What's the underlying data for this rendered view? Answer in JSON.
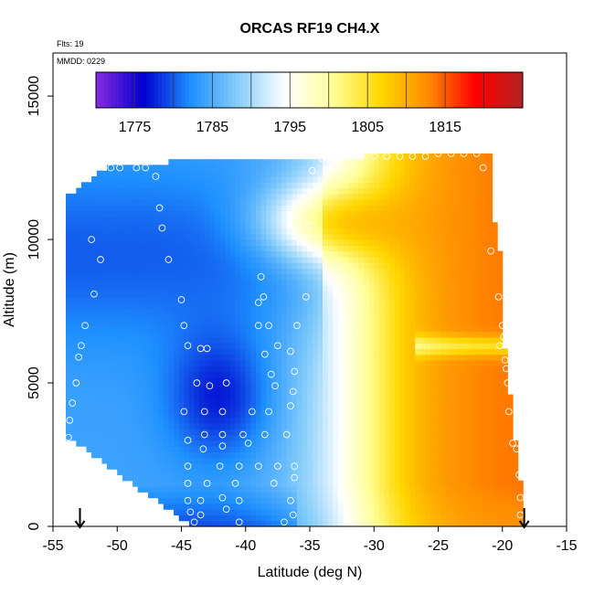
{
  "chart_data": {
    "type": "heatmap",
    "title": "ORCAS RF19 CH4.X",
    "annotations": {
      "flights": "Flts: 19",
      "mmdd": "MMDD: 0229"
    },
    "xlabel": "Latitude (deg N)",
    "ylabel": "Altitude (m)",
    "xlim": [
      -55,
      -15
    ],
    "ylim": [
      0,
      16500
    ],
    "x_ticks": [
      -55,
      -50,
      -45,
      -40,
      -35,
      -30,
      -25,
      -20,
      -15
    ],
    "y_ticks": [
      0,
      5000,
      10000,
      15000
    ],
    "colorbar": {
      "min": 1770,
      "max": 1825,
      "ticks": [
        1775,
        1785,
        1795,
        1805,
        1815
      ],
      "colors": [
        "#8a2be2",
        "#0000cd",
        "#1e90ff",
        "#87cefa",
        "#ffffff",
        "#ffff99",
        "#ffd700",
        "#ff8c00",
        "#ff0000",
        "#b22222"
      ]
    },
    "arrows": [
      {
        "lat": -52.9,
        "direction": "down"
      },
      {
        "lat": -18.3,
        "direction": "down"
      }
    ],
    "samples": [
      {
        "lat": -50.5,
        "alt": 12500
      },
      {
        "lat": -49.8,
        "alt": 12500
      },
      {
        "lat": -48.5,
        "alt": 12500
      },
      {
        "lat": -47.8,
        "alt": 12500
      },
      {
        "lat": -47.0,
        "alt": 12200
      },
      {
        "lat": -46.7,
        "alt": 11100
      },
      {
        "lat": -46.5,
        "alt": 10400
      },
      {
        "lat": -52.0,
        "alt": 10000
      },
      {
        "lat": -51.3,
        "alt": 9300
      },
      {
        "lat": -46.0,
        "alt": 9300
      },
      {
        "lat": -45.0,
        "alt": 7900
      },
      {
        "lat": -51.8,
        "alt": 8100
      },
      {
        "lat": -52.5,
        "alt": 7000
      },
      {
        "lat": -44.8,
        "alt": 7000
      },
      {
        "lat": -44.5,
        "alt": 6300
      },
      {
        "lat": -52.8,
        "alt": 6300
      },
      {
        "lat": -53.0,
        "alt": 5900
      },
      {
        "lat": -43.5,
        "alt": 6200
      },
      {
        "lat": -43.0,
        "alt": 6200
      },
      {
        "lat": -43.8,
        "alt": 5000
      },
      {
        "lat": -42.8,
        "alt": 4900
      },
      {
        "lat": -41.5,
        "alt": 5000
      },
      {
        "lat": -53.2,
        "alt": 5000
      },
      {
        "lat": -53.5,
        "alt": 4300
      },
      {
        "lat": -53.7,
        "alt": 3700
      },
      {
        "lat": -53.8,
        "alt": 3100
      },
      {
        "lat": -44.8,
        "alt": 4000
      },
      {
        "lat": -43.2,
        "alt": 4000
      },
      {
        "lat": -41.8,
        "alt": 4000
      },
      {
        "lat": -39.5,
        "alt": 4000
      },
      {
        "lat": -38.2,
        "alt": 4000
      },
      {
        "lat": -43.2,
        "alt": 3200
      },
      {
        "lat": -41.8,
        "alt": 3200
      },
      {
        "lat": -40.2,
        "alt": 3200
      },
      {
        "lat": -38.5,
        "alt": 3200
      },
      {
        "lat": -36.8,
        "alt": 3200
      },
      {
        "lat": -44.5,
        "alt": 3000
      },
      {
        "lat": -43.3,
        "alt": 2700
      },
      {
        "lat": -41.8,
        "alt": 2800
      },
      {
        "lat": -39.8,
        "alt": 2900
      },
      {
        "lat": -42.0,
        "alt": 2100
      },
      {
        "lat": -40.5,
        "alt": 2100
      },
      {
        "lat": -39.0,
        "alt": 2100
      },
      {
        "lat": -37.5,
        "alt": 2100
      },
      {
        "lat": -36.2,
        "alt": 2100
      },
      {
        "lat": -44.5,
        "alt": 2100
      },
      {
        "lat": -44.5,
        "alt": 1500
      },
      {
        "lat": -43.0,
        "alt": 1500
      },
      {
        "lat": -40.8,
        "alt": 1500
      },
      {
        "lat": -37.8,
        "alt": 1500
      },
      {
        "lat": -36.2,
        "alt": 1700
      },
      {
        "lat": -44.5,
        "alt": 900
      },
      {
        "lat": -43.5,
        "alt": 900
      },
      {
        "lat": -41.8,
        "alt": 1000
      },
      {
        "lat": -40.5,
        "alt": 900
      },
      {
        "lat": -36.5,
        "alt": 900
      },
      {
        "lat": -44.3,
        "alt": 500
      },
      {
        "lat": -43.5,
        "alt": 400
      },
      {
        "lat": -41.5,
        "alt": 600
      },
      {
        "lat": -40.5,
        "alt": 150
      },
      {
        "lat": -37.0,
        "alt": 150
      },
      {
        "lat": -36.3,
        "alt": 400
      },
      {
        "lat": -44.0,
        "alt": 150
      },
      {
        "lat": -36.5,
        "alt": 4200
      },
      {
        "lat": -36.3,
        "alt": 4700
      },
      {
        "lat": -36.2,
        "alt": 5400
      },
      {
        "lat": -36.5,
        "alt": 6100
      },
      {
        "lat": -37.5,
        "alt": 6300
      },
      {
        "lat": -39.0,
        "alt": 7000
      },
      {
        "lat": -38.2,
        "alt": 7000
      },
      {
        "lat": -38.6,
        "alt": 8000
      },
      {
        "lat": -38.8,
        "alt": 8700
      },
      {
        "lat": -39.0,
        "alt": 7800
      },
      {
        "lat": -38.5,
        "alt": 6000
      },
      {
        "lat": -38.0,
        "alt": 5300
      },
      {
        "lat": -37.7,
        "alt": 4900
      },
      {
        "lat": -35.2,
        "alt": 11300
      },
      {
        "lat": -35.0,
        "alt": 10500
      },
      {
        "lat": -36.0,
        "alt": 7000
      },
      {
        "lat": -35.3,
        "alt": 8000
      },
      {
        "lat": -34.8,
        "alt": 12400
      },
      {
        "lat": -34.0,
        "alt": 12800
      },
      {
        "lat": -33.0,
        "alt": 12900
      },
      {
        "lat": -32.0,
        "alt": 12900
      },
      {
        "lat": -31.0,
        "alt": 12900
      },
      {
        "lat": -30.0,
        "alt": 12900
      },
      {
        "lat": -29.0,
        "alt": 12900
      },
      {
        "lat": -28.0,
        "alt": 12900
      },
      {
        "lat": -27.0,
        "alt": 12900
      },
      {
        "lat": -26.0,
        "alt": 12900
      },
      {
        "lat": -25.0,
        "alt": 13000
      },
      {
        "lat": -24.0,
        "alt": 13000
      },
      {
        "lat": -23.0,
        "alt": 13000
      },
      {
        "lat": -22.0,
        "alt": 13000
      },
      {
        "lat": -21.5,
        "alt": 12500
      },
      {
        "lat": -20.9,
        "alt": 9600
      },
      {
        "lat": -20.3,
        "alt": 8000
      },
      {
        "lat": -20.0,
        "alt": 7000
      },
      {
        "lat": -19.8,
        "alt": 5800
      },
      {
        "lat": -19.6,
        "alt": 5000
      },
      {
        "lat": -19.5,
        "alt": 4000
      },
      {
        "lat": -19.2,
        "alt": 2900
      },
      {
        "lat": -18.9,
        "alt": 2700
      },
      {
        "lat": -18.7,
        "alt": 1800
      },
      {
        "lat": -18.6,
        "alt": 1000
      },
      {
        "lat": -18.6,
        "alt": 400
      },
      {
        "lat": -20.2,
        "alt": 6300
      },
      {
        "lat": -19.7,
        "alt": 5500
      },
      {
        "lat": -19.9,
        "alt": 6600
      }
    ]
  }
}
